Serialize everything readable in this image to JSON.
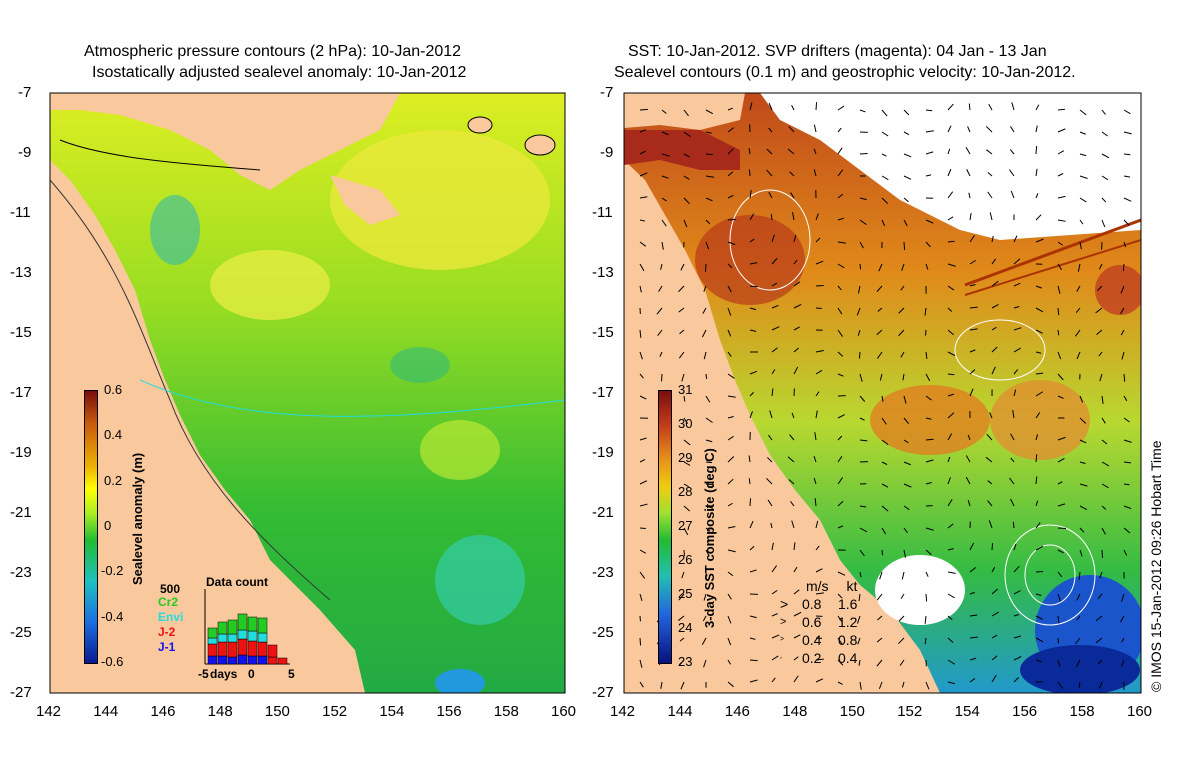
{
  "left_panel": {
    "title_line1": "Atmospheric pressure contours (2 hPa): 10-Jan-2012",
    "title_line2": "Isostatically adjusted sealevel anomaly: 10-Jan-2012",
    "colorbar_label": "Sealevel anomaly (m)",
    "colorbar_ticks": [
      "0.6",
      "0.4",
      "0.2",
      "0",
      "-0.2",
      "-0.4",
      "-0.6"
    ],
    "inset": {
      "title": "Data count",
      "ymax": "500",
      "legend": [
        {
          "label": "Cr2",
          "color": "#22cc22"
        },
        {
          "label": "Envi",
          "color": "#22dddd"
        },
        {
          "label": "J-2",
          "color": "#ee1111"
        },
        {
          "label": "J-1",
          "color": "#1111ee"
        }
      ],
      "x_ticks": [
        "-5",
        "days",
        "0",
        "5"
      ]
    }
  },
  "right_panel": {
    "title_line1": "SST: 10-Jan-2012. SVP drifters (magenta): 04 Jan - 13 Jan",
    "title_line2": "Sealevel contours (0.1 m) and geostrophic velocity: 10-Jan-2012.",
    "colorbar_label": "3-day SST composite (deg C)",
    "colorbar_ticks": [
      "31",
      "30",
      "29",
      "28",
      "27",
      "26",
      "25",
      "24",
      "23"
    ],
    "velocity_legend": {
      "headers": [
        "m/s",
        "kt"
      ],
      "rows": [
        [
          "0.8",
          "1.6"
        ],
        [
          "0.6",
          "1.2"
        ],
        [
          "0.4",
          "0.8"
        ],
        [
          "0.2",
          "0.4"
        ]
      ]
    }
  },
  "axes": {
    "y_ticks": [
      "-7",
      "-9",
      "-11",
      "-13",
      "-15",
      "-17",
      "-19",
      "-21",
      "-23",
      "-25",
      "-27"
    ],
    "x_ticks": [
      "142",
      "144",
      "146",
      "148",
      "150",
      "152",
      "154",
      "156",
      "158",
      "160"
    ]
  },
  "credit": "© IMOS 15-Jan-2012 09:26 Hobart Time",
  "colors": {
    "land": "#f9c89c",
    "anomaly_scale": [
      "#7a0e0e",
      "#c85a0e",
      "#f0b400",
      "#ffff00",
      "#aaee22",
      "#22bb33",
      "#20c0c0",
      "#1a6ee0",
      "#0a1a90"
    ],
    "sst_scale": [
      "#7a0e0e",
      "#c03a1a",
      "#e8901a",
      "#f0cc10",
      "#a0e030",
      "#22bb33",
      "#22c0b0",
      "#2266dd",
      "#0a1080"
    ]
  }
}
